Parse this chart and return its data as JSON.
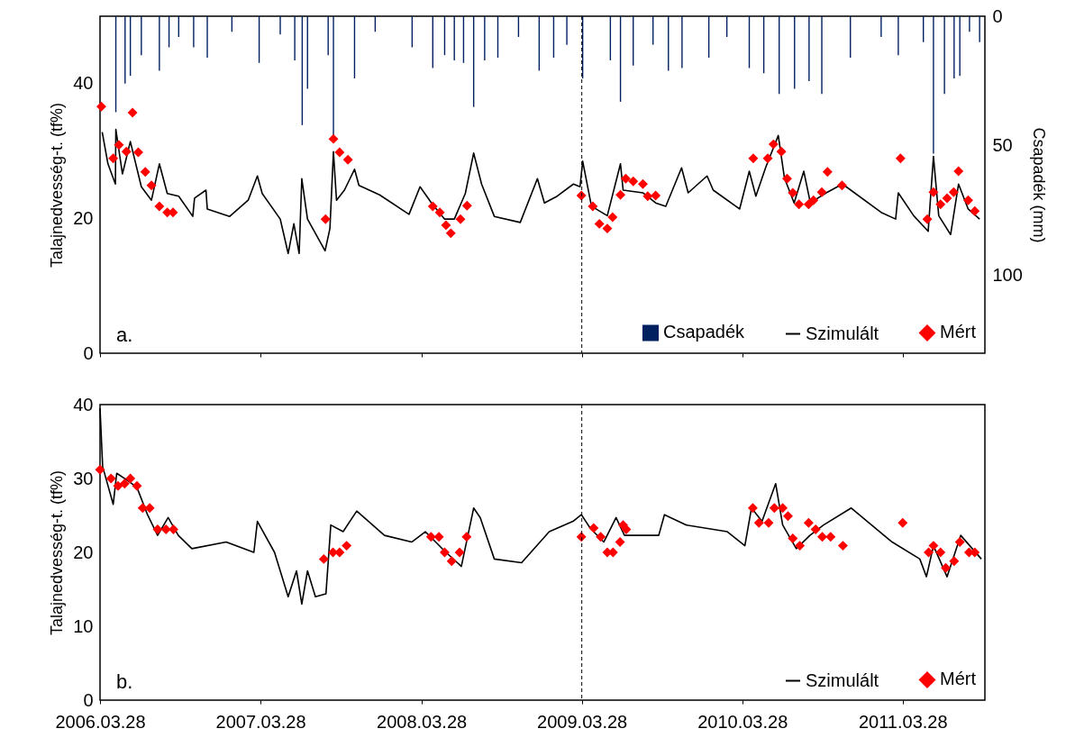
{
  "chart_data": [
    {
      "type": "line",
      "ylabel": "Talajnedvesség-t. (tf%)",
      "y2label": "Csapadék (mm)",
      "annotations": [
        "a."
      ],
      "xlim": [
        "2006-03-28",
        "2011-10-01"
      ],
      "xticks": [
        {
          "value": "2006-03-28",
          "label": null
        },
        {
          "value": "2007-03-28",
          "label": null
        },
        {
          "value": "2008-03-28",
          "label": null
        },
        {
          "value": "2009-03-28",
          "label": null
        },
        {
          "value": "2010-03-28",
          "label": null
        },
        {
          "value": "2011-03-28",
          "label": null
        }
      ],
      "ylim": [
        0,
        50
      ],
      "yticks": [
        0,
        20,
        40
      ],
      "y2lim": [
        130,
        0
      ],
      "y2ticks": [
        0,
        50,
        100
      ],
      "tick_labels": "y",
      "legend": "bottom right",
      "ref_lines": [
        {
          "axis": "x",
          "value": "2009-03-28",
          "color": "#000000",
          "line_style": "dashed"
        }
      ],
      "series": [
        {
          "name": "Csapadék",
          "type": "bar",
          "axis": "y2",
          "color": "#002060",
          "x": [
            "2006-05-03",
            "2006-05-24",
            "2006-06-05",
            "2006-06-30",
            "2006-08-10",
            "2006-09-01",
            "2006-09-23",
            "2006-10-27",
            "2006-11-27",
            "2007-01-22",
            "2007-03-25",
            "2007-05-12",
            "2007-06-14",
            "2007-07-01",
            "2007-07-13",
            "2007-08-29",
            "2007-09-10",
            "2007-10-28",
            "2007-12-14",
            "2008-03-07",
            "2008-04-23",
            "2008-05-20",
            "2008-06-11",
            "2008-07-02",
            "2008-07-25",
            "2008-08-19",
            "2008-09-18",
            "2008-11-04",
            "2008-12-21",
            "2009-01-23",
            "2009-02-22",
            "2009-03-30",
            "2009-06-01",
            "2009-06-24",
            "2009-07-23",
            "2009-09-06",
            "2009-10-11",
            "2009-11-11",
            "2010-01-11",
            "2010-02-21",
            "2010-04-13",
            "2010-05-16",
            "2010-06-20",
            "2010-07-25",
            "2010-08-27",
            "2010-09-25",
            "2010-11-29",
            "2011-02-07",
            "2011-03-18",
            "2011-05-14",
            "2011-06-06",
            "2011-07-01",
            "2011-07-23",
            "2011-08-05",
            "2011-08-27",
            "2011-09-19"
          ],
          "values": [
            37,
            26,
            23,
            15,
            21,
            12,
            8,
            12,
            16,
            6,
            18,
            7,
            17,
            42,
            28,
            15,
            46,
            24,
            6,
            12,
            20,
            15,
            17,
            18,
            35,
            17,
            16,
            8,
            21,
            16,
            11,
            24,
            17,
            33,
            19,
            11,
            21,
            20,
            16,
            8,
            20,
            22,
            30,
            28,
            25,
            30,
            16,
            8,
            15,
            10,
            53,
            30,
            24,
            23,
            6,
            10
          ]
        },
        {
          "name": "Szimulált",
          "color": "#000000",
          "x": [
            "2006-04-02",
            "2006-04-15",
            "2006-05-02",
            "2006-05-03",
            "2006-05-18",
            "2006-06-05",
            "2006-06-30",
            "2006-07-23",
            "2006-08-10",
            "2006-08-28",
            "2006-09-23",
            "2006-10-25",
            "2006-10-29",
            "2006-11-24",
            "2006-11-27",
            "2007-01-17",
            "2007-02-28",
            "2007-03-21",
            "2007-04-01",
            "2007-05-12",
            "2007-05-30",
            "2007-06-12",
            "2007-06-24",
            "2007-06-30",
            "2007-07-13",
            "2007-08-22",
            "2007-09-02",
            "2007-09-10",
            "2007-09-17",
            "2007-10-05",
            "2007-10-28",
            "2007-11-07",
            "2007-12-24",
            "2008-02-29",
            "2008-03-25",
            "2008-04-20",
            "2008-05-20",
            "2008-06-11",
            "2008-07-06",
            "2008-07-25",
            "2008-08-12",
            "2008-09-10",
            "2008-11-08",
            "2008-12-17",
            "2009-01-02",
            "2009-01-31",
            "2009-03-09",
            "2009-03-24",
            "2009-03-30",
            "2009-04-19",
            "2009-05-25",
            "2009-06-24",
            "2009-06-30",
            "2009-08-14",
            "2009-09-12",
            "2009-10-05",
            "2009-11-10",
            "2009-11-25",
            "2010-01-07",
            "2010-01-21",
            "2010-03-22",
            "2010-04-13",
            "2010-04-28",
            "2010-05-20",
            "2010-06-18",
            "2010-07-02",
            "2010-07-24",
            "2010-08-15",
            "2010-08-30",
            "2010-10-05",
            "2010-11-11",
            "2011-02-07",
            "2011-03-12",
            "2011-03-18",
            "2011-04-22",
            "2011-05-25",
            "2011-06-06",
            "2011-06-18",
            "2011-07-15",
            "2011-08-02",
            "2011-08-24",
            "2011-09-19"
          ],
          "values": [
            32.8,
            28.1,
            25.1,
            33.2,
            26.6,
            31.4,
            24.7,
            22.7,
            28.1,
            23.7,
            23.3,
            20.3,
            23,
            24.2,
            21.4,
            20.3,
            22.7,
            26.3,
            23.7,
            19.9,
            14.8,
            19.2,
            14.8,
            25.9,
            19.9,
            15.2,
            18.5,
            29.9,
            22.7,
            24.2,
            27.3,
            24.9,
            23.5,
            20.6,
            24.7,
            22.3,
            19.9,
            19.9,
            23.7,
            29.7,
            25.1,
            20.3,
            19.4,
            25.9,
            22.3,
            23.3,
            25.1,
            24.7,
            28.5,
            21.8,
            20.4,
            28.1,
            24.2,
            23.8,
            22.3,
            21.8,
            27.5,
            23.8,
            26.3,
            24.2,
            21.4,
            27,
            23.3,
            27.5,
            32.3,
            26,
            22.3,
            27,
            22.3,
            23.8,
            25.1,
            20.9,
            19.9,
            23.8,
            20.4,
            18.1,
            29.2,
            20.4,
            17.6,
            25.1,
            21.4,
            19.9
          ]
        },
        {
          "name": "Mért",
          "type": "scatter",
          "color": "#ff0000",
          "marker": "diamond",
          "x": [
            "2006-03-31",
            "2006-04-27",
            "2006-05-10",
            "2006-05-27",
            "2006-06-10",
            "2006-06-23",
            "2006-07-09",
            "2006-07-23",
            "2006-08-10",
            "2006-08-28",
            "2006-09-10",
            "2007-08-23",
            "2007-09-10",
            "2007-09-24",
            "2007-10-13",
            "2008-04-23",
            "2008-05-09",
            "2008-05-23",
            "2008-06-03",
            "2008-06-25",
            "2008-07-10",
            "2009-03-27",
            "2009-04-22",
            "2009-05-07",
            "2009-05-25",
            "2009-06-06",
            "2009-06-24",
            "2009-07-06",
            "2009-07-23",
            "2009-08-14",
            "2009-08-25",
            "2009-09-12",
            "2010-04-22",
            "2010-05-25",
            "2010-06-07",
            "2010-06-25",
            "2010-07-08",
            "2010-07-21",
            "2010-08-04",
            "2010-08-26",
            "2010-09-06",
            "2010-09-25",
            "2010-10-08",
            "2010-11-10",
            "2011-03-23",
            "2011-05-23",
            "2011-06-06",
            "2011-06-22",
            "2011-07-07",
            "2011-07-22",
            "2011-08-02",
            "2011-08-24",
            "2011-09-08"
          ],
          "values": [
            36.6,
            28.9,
            30.9,
            29.9,
            35.7,
            29.8,
            26.9,
            24.9,
            21.8,
            20.9,
            20.9,
            19.9,
            31.8,
            29.8,
            28.7,
            21.8,
            20.9,
            19,
            17.8,
            19.9,
            21.9,
            23.4,
            21.8,
            19.2,
            18.5,
            20.2,
            23.5,
            25.9,
            25.5,
            25.1,
            23.3,
            23.4,
            28.9,
            28.9,
            31,
            29.9,
            25.9,
            23.8,
            22.1,
            22.1,
            22.7,
            23.9,
            26.9,
            24.9,
            28.9,
            19.9,
            23.9,
            22.1,
            23,
            23.9,
            27,
            22.7,
            21.1
          ]
        }
      ]
    },
    {
      "type": "line",
      "ylabel": "Talajnedvesség-t. (tf%)",
      "annotations": [
        "b."
      ],
      "xlim": [
        "2006-03-28",
        "2011-10-01"
      ],
      "xticks": [
        {
          "value": "2006-03-28",
          "label": "2006.03.28"
        },
        {
          "value": "2007-03-28",
          "label": "2007.03.28"
        },
        {
          "value": "2008-03-28",
          "label": "2008.03.28"
        },
        {
          "value": "2009-03-28",
          "label": "2009.03.28"
        },
        {
          "value": "2010-03-28",
          "label": "2010.03.28"
        },
        {
          "value": "2011-03-28",
          "label": "2011.03.28"
        }
      ],
      "ylim": [
        0,
        40
      ],
      "yticks": [
        0,
        10,
        20,
        30,
        40
      ],
      "legend": "bottom right",
      "ref_lines": [
        {
          "axis": "x",
          "value": "2009-03-28",
          "color": "#000000",
          "line_style": "dashed"
        }
      ],
      "series": [
        {
          "name": "Szimulált",
          "color": "#000000",
          "x": [
            "2006-03-28",
            "2006-04-03",
            "2006-04-27",
            "2006-05-05",
            "2006-05-28",
            "2006-06-20",
            "2006-07-14",
            "2006-08-06",
            "2006-08-30",
            "2006-09-22",
            "2006-10-23",
            "2007-01-09",
            "2007-03-13",
            "2007-03-21",
            "2007-04-29",
            "2007-05-30",
            "2007-06-18",
            "2007-06-30",
            "2007-07-13",
            "2007-07-31",
            "2007-08-24",
            "2007-09-04",
            "2007-10-02",
            "2007-11-02",
            "2008-01-04",
            "2008-03-06",
            "2008-04-06",
            "2008-05-23",
            "2008-06-27",
            "2008-07-25",
            "2008-08-09",
            "2008-09-10",
            "2008-11-11",
            "2009-01-13",
            "2009-03-08",
            "2009-03-27",
            "2009-04-16",
            "2009-05-17",
            "2009-06-14",
            "2009-07-03",
            "2009-09-19",
            "2009-10-02",
            "2009-11-21",
            "2010-02-22",
            "2010-04-03",
            "2010-04-18",
            "2010-05-12",
            "2010-06-12",
            "2010-06-28",
            "2010-07-29",
            "2010-08-29",
            "2010-09-29",
            "2010-12-01",
            "2011-03-04",
            "2011-05-06",
            "2011-05-21",
            "2011-06-06",
            "2011-07-07",
            "2011-08-07",
            "2011-09-23"
          ],
          "values": [
            39.5,
            31.6,
            26.5,
            30.7,
            29.8,
            28.8,
            25.1,
            22.3,
            24.7,
            22.3,
            20.5,
            21.4,
            20,
            24.2,
            20,
            14,
            17.5,
            13,
            17.5,
            14,
            14.4,
            23.7,
            22.8,
            25.6,
            22.3,
            21.4,
            22.8,
            20,
            18.1,
            26,
            24.7,
            19.1,
            18.6,
            22.8,
            24.2,
            25.1,
            23.3,
            21.4,
            24.7,
            22.3,
            22.3,
            25.1,
            23.7,
            22.8,
            20.9,
            26,
            24.2,
            29.3,
            23.7,
            20.5,
            22.3,
            23.7,
            26,
            21.4,
            19.1,
            16.7,
            20.9,
            16.7,
            22.3,
            19.1
          ]
        },
        {
          "name": "Mért",
          "type": "scatter",
          "color": "#ff0000",
          "marker": "diamond",
          "x": [
            "2006-03-28",
            "2006-04-22",
            "2006-05-08",
            "2006-05-23",
            "2006-06-05",
            "2006-06-20",
            "2006-07-03",
            "2006-07-19",
            "2006-08-06",
            "2006-08-25",
            "2006-09-11",
            "2007-08-19",
            "2007-09-09",
            "2007-09-24",
            "2007-10-10",
            "2008-04-19",
            "2008-05-07",
            "2008-05-20",
            "2008-06-05",
            "2008-06-23",
            "2008-07-09",
            "2009-03-27",
            "2009-04-24",
            "2009-05-10",
            "2009-05-25",
            "2009-06-07",
            "2009-06-23",
            "2009-06-30",
            "2009-07-07",
            "2010-04-21",
            "2010-05-05",
            "2010-05-27",
            "2010-06-09",
            "2010-06-28",
            "2010-07-10",
            "2010-07-21",
            "2010-08-06",
            "2010-08-26",
            "2010-09-11",
            "2010-09-26",
            "2010-10-15",
            "2010-11-12",
            "2011-03-28",
            "2011-05-26",
            "2011-06-06",
            "2011-06-22",
            "2011-07-04",
            "2011-07-23",
            "2011-08-05",
            "2011-08-26",
            "2011-09-08"
          ],
          "values": [
            31.2,
            30,
            29,
            29.3,
            30,
            29,
            26,
            26,
            23.1,
            23.1,
            23.1,
            19.1,
            20,
            20,
            20.9,
            22.1,
            22.1,
            20,
            18.8,
            20,
            22.1,
            22.1,
            23.3,
            22.1,
            20,
            20,
            21.4,
            23.7,
            23.1,
            26,
            24,
            24,
            26,
            26,
            24.9,
            21.9,
            20.9,
            24,
            23.1,
            22.1,
            22.1,
            20.9,
            24,
            20,
            20.9,
            20,
            17.9,
            18.8,
            21.4,
            20,
            20
          ]
        }
      ]
    }
  ]
}
